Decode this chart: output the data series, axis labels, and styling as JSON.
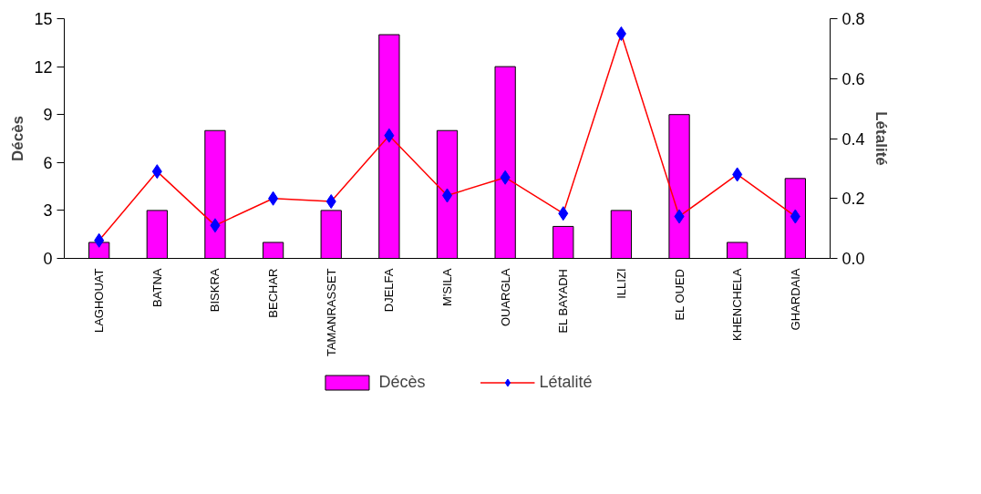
{
  "chart_data": {
    "type": "bar",
    "ylabel": "Décès",
    "y2label": "Létalité",
    "categories": [
      "LAGHOUAT",
      "BATNA",
      "BISKRA",
      "BECHAR",
      "TAMANRASSET",
      "DJELFA",
      "M'SILA",
      "OUARGLA",
      "EL BAYADH",
      "ILLIZI",
      "EL OUED",
      "KHENCHELA",
      "GHARDAIA"
    ],
    "series": [
      {
        "name": "Décès",
        "color": "#ff00ff",
        "values": [
          1,
          3,
          8,
          1,
          3,
          14,
          8,
          12,
          2,
          3,
          9,
          1,
          5
        ]
      },
      {
        "name": "Létalité",
        "type": "line",
        "axis": "y2",
        "color": "#ff0000",
        "marker": "diamond",
        "colors": [
          "#0000ff",
          "#0000ff",
          "#0000ff",
          "#0000ff",
          "#0000ff",
          "#0000ff",
          "#0000ff",
          "#0000ff",
          "#0000ff",
          "#0000ff",
          "#0000ff",
          "#0000ff",
          "#0000ff"
        ],
        "values": [
          0.06,
          0.29,
          0.11,
          0.2,
          0.19,
          0.41,
          0.21,
          0.27,
          0.15,
          0.75,
          0.14,
          0.28,
          0.14
        ]
      }
    ],
    "ylim": [
      0,
      15
    ],
    "yticks": [
      0,
      3,
      6,
      9,
      12,
      15
    ],
    "y2lim": [
      0,
      0.8
    ],
    "y2ticks": [
      {
        "value": 0,
        "label": "0.0"
      },
      {
        "value": 0.2,
        "label": "0.2"
      },
      {
        "value": 0.4,
        "label": "0.4"
      },
      {
        "value": 0.6,
        "label": "0.6"
      },
      {
        "value": 0.8,
        "label": "0.8"
      }
    ],
    "grid": false,
    "legend": "bottom"
  }
}
